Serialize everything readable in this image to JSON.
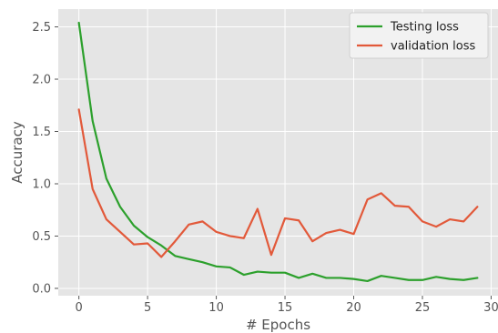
{
  "chart_data": {
    "type": "line",
    "xlabel": "# Epochs",
    "ylabel": "Accuracy",
    "xlim": [
      -1.5,
      30.5
    ],
    "ylim": [
      -0.07,
      2.67
    ],
    "xticks": [
      0,
      5,
      10,
      15,
      20,
      25,
      30
    ],
    "yticks": [
      0.0,
      0.5,
      1.0,
      1.5,
      2.0,
      2.5
    ],
    "xtick_labels": [
      "0",
      "5",
      "10",
      "15",
      "20",
      "25",
      "30"
    ],
    "ytick_labels": [
      "0.0",
      "0.5",
      "1.0",
      "1.5",
      "2.0",
      "2.5"
    ],
    "grid": true,
    "legend_position": "top-right",
    "x": [
      0,
      1,
      2,
      3,
      4,
      5,
      6,
      7,
      8,
      9,
      10,
      11,
      12,
      13,
      14,
      15,
      16,
      17,
      18,
      19,
      20,
      21,
      22,
      23,
      24,
      25,
      26,
      27,
      28,
      29
    ],
    "series": [
      {
        "name": "Testing loss",
        "color": "#2ca02c",
        "values": [
          2.54,
          1.6,
          1.05,
          0.78,
          0.6,
          0.49,
          0.41,
          0.31,
          0.28,
          0.25,
          0.21,
          0.2,
          0.13,
          0.16,
          0.15,
          0.15,
          0.1,
          0.14,
          0.1,
          0.1,
          0.09,
          0.07,
          0.12,
          0.1,
          0.08,
          0.08,
          0.11,
          0.09,
          0.08,
          0.1
        ]
      },
      {
        "name": "validation loss",
        "color": "#e2593a",
        "values": [
          1.71,
          0.95,
          0.66,
          0.54,
          0.42,
          0.43,
          0.3,
          0.45,
          0.61,
          0.64,
          0.54,
          0.5,
          0.48,
          0.76,
          0.32,
          0.67,
          0.65,
          0.45,
          0.53,
          0.56,
          0.52,
          0.85,
          0.91,
          0.79,
          0.78,
          0.64,
          0.59,
          0.66,
          0.64,
          0.78
        ]
      }
    ]
  }
}
